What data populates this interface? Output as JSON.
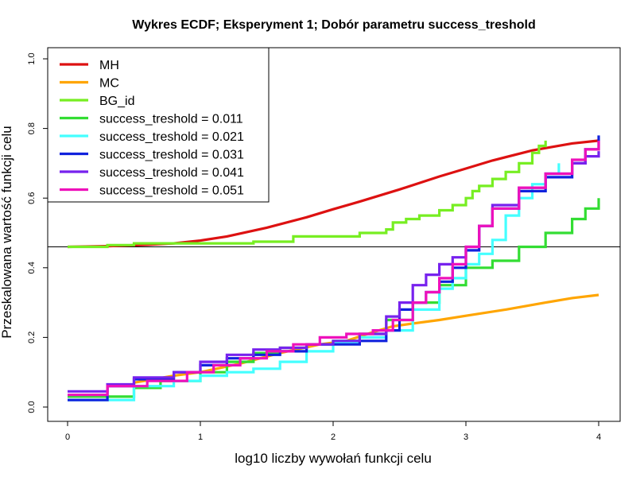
{
  "chart_data": {
    "type": "line",
    "title": "Wykres ECDF; Eksperyment 1; Dobór parametru success_treshold",
    "xlabel": "log10 liczby wywołań funkcji celu",
    "ylabel": "Przeskalowana wartość funkcji celu",
    "xlim": [
      0,
      4
    ],
    "ylim": [
      0,
      1
    ],
    "xticks": [
      "0",
      "1",
      "2",
      "3",
      "4"
    ],
    "yticks": [
      "0.0",
      "0.2",
      "0.4",
      "0.6",
      "0.8",
      "1.0"
    ],
    "reference_line_y": 0.46,
    "grid": false,
    "legend_position": "top-left",
    "series": [
      {
        "name": "MH",
        "color": "#dd1111",
        "step": false,
        "x": [
          0,
          0.3,
          0.6,
          0.8,
          1.0,
          1.2,
          1.5,
          1.8,
          2.0,
          2.2,
          2.5,
          2.8,
          3.0,
          3.2,
          3.5,
          3.8,
          4.0
        ],
        "y": [
          0.46,
          0.462,
          0.466,
          0.47,
          0.478,
          0.49,
          0.515,
          0.545,
          0.568,
          0.59,
          0.625,
          0.662,
          0.685,
          0.708,
          0.737,
          0.757,
          0.765
        ]
      },
      {
        "name": "MC",
        "color": "#ffa500",
        "step": false,
        "x": [
          0.5,
          0.8,
          1.0,
          1.3,
          1.6,
          1.9,
          2.1,
          2.3,
          2.45,
          2.6,
          2.8,
          3.0,
          3.3,
          3.6,
          3.8,
          4.0
        ],
        "y": [
          0.07,
          0.09,
          0.1,
          0.125,
          0.155,
          0.18,
          0.19,
          0.215,
          0.232,
          0.24,
          0.25,
          0.262,
          0.28,
          0.3,
          0.313,
          0.322
        ]
      },
      {
        "name": "BG_id",
        "color": "#77ee22",
        "step": true,
        "x": [
          0,
          0.3,
          0.5,
          1.0,
          1.4,
          1.7,
          2.2,
          2.4,
          2.45,
          2.55,
          2.65,
          2.8,
          2.9,
          3.0,
          3.05,
          3.1,
          3.2,
          3.3,
          3.4,
          3.5,
          3.55,
          3.6
        ],
        "y": [
          0.46,
          0.465,
          0.47,
          0.47,
          0.475,
          0.49,
          0.5,
          0.51,
          0.53,
          0.54,
          0.55,
          0.565,
          0.58,
          0.6,
          0.62,
          0.635,
          0.655,
          0.675,
          0.7,
          0.73,
          0.75,
          0.765
        ]
      },
      {
        "name": "success_treshold = 0.011",
        "color": "#33dd33",
        "step": true,
        "x": [
          0,
          0.5,
          0.7,
          1.0,
          1.2,
          1.4,
          1.6,
          1.8,
          2.0,
          2.2,
          2.4,
          2.6,
          2.8,
          3.0,
          3.2,
          3.4,
          3.6,
          3.8,
          3.9,
          4.0
        ],
        "y": [
          0.03,
          0.055,
          0.075,
          0.1,
          0.13,
          0.155,
          0.17,
          0.18,
          0.19,
          0.21,
          0.25,
          0.3,
          0.35,
          0.4,
          0.42,
          0.46,
          0.5,
          0.54,
          0.57,
          0.6
        ]
      },
      {
        "name": "success_treshold = 0.021",
        "color": "#44ffff",
        "step": true,
        "x": [
          0,
          0.5,
          0.8,
          1.0,
          1.2,
          1.4,
          1.6,
          1.8,
          2.0,
          2.2,
          2.4,
          2.6,
          2.8,
          2.9,
          3.0,
          3.1,
          3.2,
          3.3,
          3.4,
          3.5,
          3.6,
          3.7
        ],
        "y": [
          0.02,
          0.06,
          0.075,
          0.09,
          0.1,
          0.11,
          0.13,
          0.16,
          0.185,
          0.2,
          0.22,
          0.28,
          0.34,
          0.37,
          0.41,
          0.44,
          0.48,
          0.55,
          0.6,
          0.64,
          0.67,
          0.7
        ]
      },
      {
        "name": "success_treshold = 0.031",
        "color": "#1122dd",
        "step": true,
        "x": [
          0,
          0.3,
          0.5,
          0.8,
          1.0,
          1.2,
          1.4,
          1.6,
          1.8,
          2.0,
          2.2,
          2.4,
          2.5,
          2.6,
          2.7,
          2.8,
          2.9,
          3.0,
          3.1,
          3.2,
          3.4,
          3.6,
          3.8,
          3.9,
          4.0
        ],
        "y": [
          0.02,
          0.06,
          0.08,
          0.1,
          0.12,
          0.14,
          0.15,
          0.16,
          0.18,
          0.18,
          0.19,
          0.22,
          0.28,
          0.3,
          0.33,
          0.36,
          0.4,
          0.45,
          0.52,
          0.57,
          0.62,
          0.66,
          0.7,
          0.74,
          0.78
        ]
      },
      {
        "name": "success_treshold = 0.041",
        "color": "#7722ee",
        "step": true,
        "x": [
          0,
          0.3,
          0.5,
          0.8,
          1.0,
          1.2,
          1.4,
          1.6,
          1.8,
          2.0,
          2.2,
          2.4,
          2.5,
          2.6,
          2.7,
          2.8,
          2.9,
          3.0,
          3.1,
          3.2,
          3.4,
          3.6,
          3.8,
          3.9,
          4.0
        ],
        "y": [
          0.045,
          0.065,
          0.085,
          0.1,
          0.13,
          0.15,
          0.165,
          0.17,
          0.18,
          0.19,
          0.21,
          0.26,
          0.3,
          0.35,
          0.38,
          0.41,
          0.43,
          0.46,
          0.52,
          0.58,
          0.63,
          0.67,
          0.7,
          0.72,
          0.735
        ]
      },
      {
        "name": "success_treshold = 0.051",
        "color": "#ee11bb",
        "step": true,
        "x": [
          0,
          0.3,
          0.6,
          0.9,
          1.1,
          1.3,
          1.5,
          1.7,
          1.9,
          2.1,
          2.3,
          2.45,
          2.6,
          2.7,
          2.8,
          2.9,
          3.0,
          3.1,
          3.2,
          3.4,
          3.6,
          3.8,
          3.9,
          4.0
        ],
        "y": [
          0.035,
          0.06,
          0.075,
          0.1,
          0.12,
          0.14,
          0.16,
          0.18,
          0.2,
          0.21,
          0.22,
          0.25,
          0.3,
          0.33,
          0.37,
          0.41,
          0.46,
          0.52,
          0.57,
          0.63,
          0.67,
          0.71,
          0.74,
          0.765
        ]
      }
    ]
  }
}
